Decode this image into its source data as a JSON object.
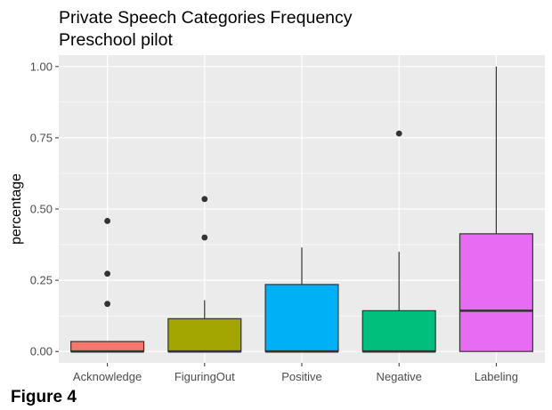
{
  "caption": "Figure 4",
  "chart_data": {
    "type": "boxplot",
    "title": "Private Speech Categories Frequency",
    "subtitle": "Preschool pilot",
    "xlabel": "",
    "ylabel": "percentage",
    "ylim": [
      -0.04,
      1.04
    ],
    "y_ticks": [
      "0.00",
      "0.25",
      "0.50",
      "0.75",
      "1.00"
    ],
    "y_tick_values": [
      0,
      0.25,
      0.5,
      0.75,
      1.0
    ],
    "grid": true,
    "legend": "none",
    "categories": [
      "Acknowledge",
      "FiguringOut",
      "Positive",
      "Negative",
      "Labeling"
    ],
    "boxes": [
      {
        "category": "Acknowledge",
        "color": "#F8766D",
        "whisker_low": 0.0,
        "q1": 0.0,
        "median": 0.0,
        "q3": 0.035,
        "whisker_high": 0.035,
        "outliers": [
          0.167,
          0.273,
          0.458
        ]
      },
      {
        "category": "FiguringOut",
        "color": "#A3A500",
        "whisker_low": 0.0,
        "q1": 0.0,
        "median": 0.0,
        "q3": 0.115,
        "whisker_high": 0.18,
        "outliers": [
          0.4,
          0.535
        ]
      },
      {
        "category": "Positive",
        "color": "#00B0F6",
        "whisker_low": 0.0,
        "q1": 0.0,
        "median": 0.0,
        "q3": 0.235,
        "whisker_high": 0.365,
        "outliers": []
      },
      {
        "category": "Negative",
        "color": "#00BF7D",
        "whisker_low": 0.0,
        "q1": 0.0,
        "median": 0.0,
        "q3": 0.143,
        "whisker_high": 0.35,
        "outliers": [
          0.765
        ]
      },
      {
        "category": "Labeling",
        "color": "#E76BF3",
        "whisker_low": 0.0,
        "q1": 0.0,
        "median": 0.143,
        "q3": 0.413,
        "whisker_high": 1.0,
        "outliers": []
      }
    ]
  }
}
